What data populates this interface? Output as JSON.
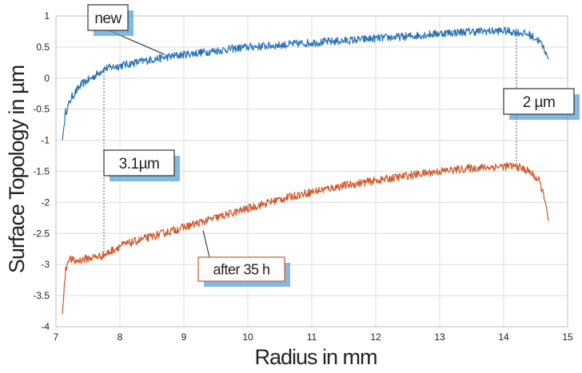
{
  "chart_data": {
    "type": "line",
    "title": "",
    "xlabel": "Radius in mm",
    "ylabel": "Surface Topology in µm",
    "xlim": [
      7,
      15
    ],
    "ylim": [
      -4,
      1
    ],
    "x_ticks": [
      7,
      8,
      9,
      10,
      11,
      12,
      13,
      14,
      15
    ],
    "y_ticks": [
      1,
      0.5,
      0,
      -0.5,
      -1,
      -1.5,
      -2,
      -2.5,
      -3,
      -3.5,
      -4
    ],
    "grid": true,
    "legend": "none",
    "series": [
      {
        "color": "#2b73b8",
        "x": [
          7.1,
          7.15,
          7.25,
          7.4,
          7.6,
          7.75,
          8.0,
          8.5,
          9.0,
          9.5,
          10.0,
          10.5,
          11.0,
          11.5,
          12.0,
          12.5,
          13.0,
          13.5,
          14.0,
          14.2,
          14.4,
          14.55,
          14.65,
          14.7
        ],
        "y": [
          -1.0,
          -0.55,
          -0.3,
          -0.1,
          0.03,
          0.15,
          0.2,
          0.3,
          0.38,
          0.44,
          0.5,
          0.53,
          0.57,
          0.6,
          0.64,
          0.67,
          0.72,
          0.75,
          0.76,
          0.74,
          0.7,
          0.6,
          0.45,
          0.3
        ]
      },
      {
        "color": "#d2572a",
        "x": [
          7.1,
          7.15,
          7.2,
          7.3,
          7.5,
          7.75,
          8.0,
          8.5,
          9.0,
          9.5,
          10.0,
          10.5,
          11.0,
          11.5,
          12.0,
          12.5,
          13.0,
          13.5,
          14.0,
          14.2,
          14.4,
          14.55,
          14.65,
          14.7
        ],
        "y": [
          -3.8,
          -3.1,
          -2.9,
          -2.95,
          -2.9,
          -2.85,
          -2.7,
          -2.55,
          -2.4,
          -2.25,
          -2.1,
          -1.95,
          -1.83,
          -1.73,
          -1.65,
          -1.57,
          -1.5,
          -1.45,
          -1.42,
          -1.42,
          -1.5,
          -1.65,
          -1.95,
          -2.3
        ]
      }
    ],
    "annotations": [
      {
        "label": "new",
        "points_to": [
          8.7,
          0.38
        ],
        "border_color": "#333333"
      },
      {
        "label": "after 35 h",
        "points_to": [
          9.3,
          -2.45
        ],
        "border_color": "#d2572a"
      },
      {
        "label": "3.1µm",
        "marker_x": 7.75,
        "marker_from": -2.85,
        "marker_to": 0.15
      },
      {
        "label": "2 µm",
        "marker_x": 14.2,
        "marker_from": -1.42,
        "marker_to": 0.74
      }
    ]
  }
}
